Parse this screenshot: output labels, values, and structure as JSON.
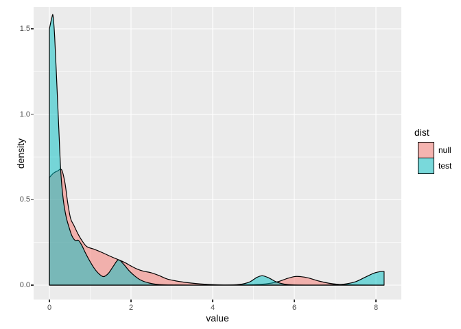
{
  "axes": {
    "x": {
      "title": "value",
      "tick_labels": [
        "0",
        "2",
        "4",
        "6",
        "8"
      ],
      "tick_values": [
        0,
        2,
        4,
        6,
        8
      ],
      "minor_values": [
        1,
        3,
        5,
        7
      ]
    },
    "y": {
      "title": "density",
      "tick_labels": [
        "0.0",
        "0.5",
        "1.0",
        "1.5"
      ],
      "tick_values": [
        0,
        0.5,
        1.0,
        1.5
      ],
      "minor_values": [
        0.25,
        0.75,
        1.25
      ]
    }
  },
  "legend": {
    "title": "dist",
    "items": [
      {
        "label": "null",
        "color": "#F8766D"
      },
      {
        "label": "test",
        "color": "#00BFC4"
      }
    ],
    "key_background": "#F2F2F2",
    "key_border": "#000000",
    "position": "right"
  },
  "style": {
    "figure_background": "#FFFFFF",
    "panel_background": "#EBEBEB",
    "grid_major_color": "#FFFFFF",
    "grid_minor_color": "#FFFFFF",
    "tick_label_color": "#4D4D4D",
    "tick_mark_color": "#333333",
    "outline_color": "#000000",
    "fill_alpha": 0.5
  },
  "chart_data": {
    "type": "area",
    "subtype": "overlapping-density-curves",
    "title": "",
    "xlabel": "value",
    "ylabel": "density",
    "xlim": [
      -0.39,
      8.62
    ],
    "ylim": [
      -0.084,
      1.63
    ],
    "grid": true,
    "legend_position": "right",
    "series": [
      {
        "name": "null",
        "color": "#F8766D",
        "points": [
          [
            0,
            0.63
          ],
          [
            0.1,
            0.655
          ],
          [
            0.2,
            0.668
          ],
          [
            0.3,
            0.675
          ],
          [
            0.38,
            0.6
          ],
          [
            0.45,
            0.48
          ],
          [
            0.52,
            0.39
          ],
          [
            0.6,
            0.35
          ],
          [
            0.7,
            0.3
          ],
          [
            0.8,
            0.26
          ],
          [
            0.92,
            0.225
          ],
          [
            1.1,
            0.21
          ],
          [
            1.3,
            0.19
          ],
          [
            1.5,
            0.168
          ],
          [
            1.7,
            0.148
          ],
          [
            1.85,
            0.132
          ],
          [
            2.0,
            0.112
          ],
          [
            2.15,
            0.094
          ],
          [
            2.3,
            0.082
          ],
          [
            2.5,
            0.072
          ],
          [
            2.7,
            0.055
          ],
          [
            2.9,
            0.035
          ],
          [
            3.3,
            0.017
          ],
          [
            3.7,
            0.007
          ],
          [
            4.1,
            0.002
          ],
          [
            4.5,
            0.001
          ],
          [
            4.9,
            0.002
          ],
          [
            5.3,
            0.007
          ],
          [
            5.6,
            0.02
          ],
          [
            5.8,
            0.037
          ],
          [
            6.0,
            0.05
          ],
          [
            6.15,
            0.05
          ],
          [
            6.35,
            0.042
          ],
          [
            6.6,
            0.024
          ],
          [
            6.85,
            0.011
          ],
          [
            7.1,
            0.004
          ],
          [
            7.5,
            0.001
          ],
          [
            8.0,
            0
          ],
          [
            8.2,
            0
          ]
        ]
      },
      {
        "name": "test",
        "color": "#00BFC4",
        "points": [
          [
            0,
            1.5
          ],
          [
            0.06,
            1.565
          ],
          [
            0.09,
            1.575
          ],
          [
            0.13,
            1.45
          ],
          [
            0.18,
            1.19
          ],
          [
            0.23,
            0.92
          ],
          [
            0.28,
            0.66
          ],
          [
            0.34,
            0.5
          ],
          [
            0.41,
            0.4
          ],
          [
            0.48,
            0.34
          ],
          [
            0.55,
            0.29
          ],
          [
            0.63,
            0.262
          ],
          [
            0.71,
            0.262
          ],
          [
            0.79,
            0.235
          ],
          [
            0.88,
            0.19
          ],
          [
            0.98,
            0.145
          ],
          [
            1.1,
            0.098
          ],
          [
            1.22,
            0.065
          ],
          [
            1.33,
            0.05
          ],
          [
            1.45,
            0.07
          ],
          [
            1.57,
            0.112
          ],
          [
            1.69,
            0.148
          ],
          [
            1.82,
            0.122
          ],
          [
            1.95,
            0.085
          ],
          [
            2.1,
            0.052
          ],
          [
            2.25,
            0.028
          ],
          [
            2.45,
            0.012
          ],
          [
            2.7,
            0.003
          ],
          [
            3.0,
            0.001
          ],
          [
            3.5,
            0
          ],
          [
            4.3,
            0
          ],
          [
            4.65,
            0.004
          ],
          [
            4.9,
            0.018
          ],
          [
            5.08,
            0.045
          ],
          [
            5.22,
            0.055
          ],
          [
            5.38,
            0.042
          ],
          [
            5.55,
            0.02
          ],
          [
            5.75,
            0.006
          ],
          [
            6.0,
            0.001
          ],
          [
            6.5,
            0
          ],
          [
            6.9,
            0.001
          ],
          [
            7.2,
            0.005
          ],
          [
            7.5,
            0.02
          ],
          [
            7.75,
            0.048
          ],
          [
            7.95,
            0.07
          ],
          [
            8.1,
            0.079
          ],
          [
            8.2,
            0.08
          ]
        ]
      }
    ]
  }
}
